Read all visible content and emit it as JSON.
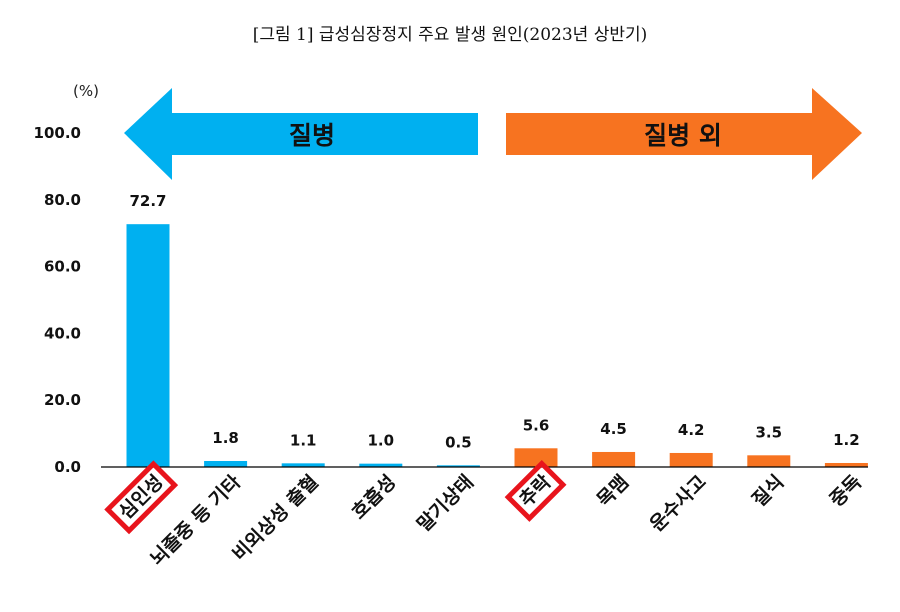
{
  "chart_data": {
    "type": "bar",
    "title": "[그림 1] 급성심장정지 주요 발생 원인(2023년 상반기)",
    "unit": "(%)",
    "categories": [
      "심인성",
      "뇌졸중 등 기타",
      "비외상성 출혈",
      "호흡성",
      "말기상태",
      "추락",
      "목맴",
      "운수사고",
      "질식",
      "중독"
    ],
    "values": [
      72.7,
      1.8,
      1.1,
      1.0,
      0.5,
      5.6,
      4.5,
      4.2,
      3.5,
      1.2
    ],
    "value_labels": [
      "72.7",
      "1.8",
      "1.1",
      "1.0",
      "0.5",
      "5.6",
      "4.5",
      "4.2",
      "3.5",
      "1.2"
    ],
    "ylim": [
      0,
      100
    ],
    "y_ticks": [
      "0.0",
      "20.0",
      "40.0",
      "60.0",
      "80.0",
      "100.0"
    ],
    "y_tick_values": [
      0,
      20,
      40,
      60,
      80,
      100
    ],
    "grid": false,
    "groups": [
      {
        "label": "질병",
        "color": "#00b0f0",
        "direction": "left",
        "category_indices": [
          0,
          1,
          2,
          3,
          4
        ]
      },
      {
        "label": "질병 외",
        "color": "#f77320",
        "direction": "right",
        "category_indices": [
          5,
          6,
          7,
          8,
          9
        ]
      }
    ],
    "highlighted_categories": [
      "심인성",
      "추락"
    ],
    "highlight_color": "#e8141c"
  }
}
